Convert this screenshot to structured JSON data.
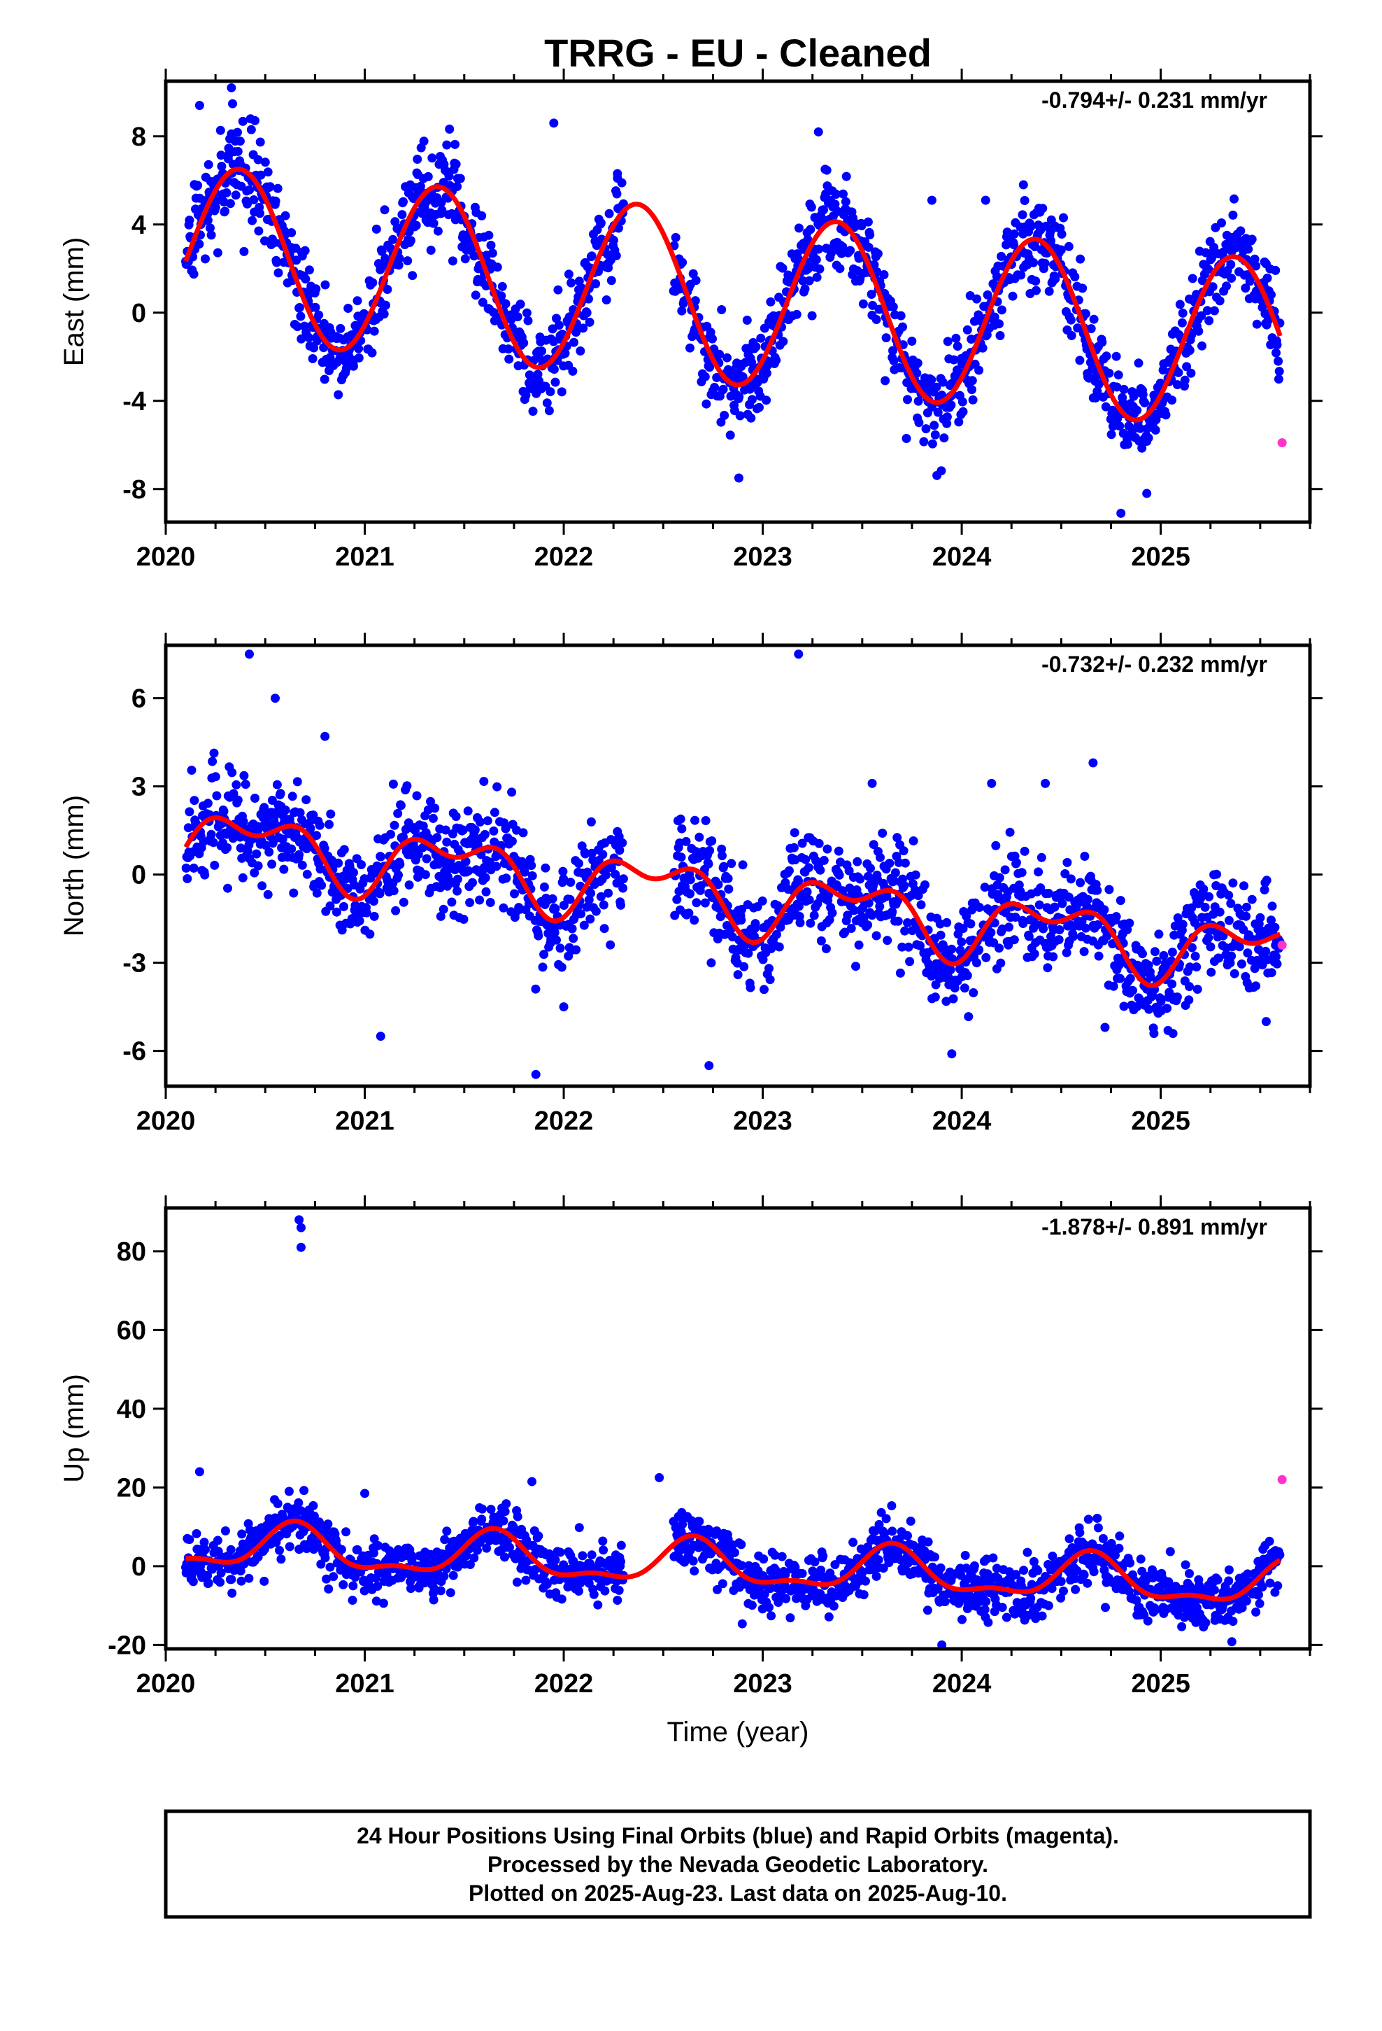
{
  "title": "TRRG  - EU - Cleaned",
  "xlabel": "Time (year)",
  "footer": {
    "line1": "24 Hour Positions Using Final Orbits (blue) and Rapid Orbits (magenta).",
    "line2": "Processed by the Nevada Geodetic Laboratory.",
    "line3": "Plotted on 2025-Aug-23. Last data on 2025-Aug-10."
  },
  "colors": {
    "final": "#0000ff",
    "rapid": "#ff33cc",
    "model": "#ff0000",
    "axis": "#000000"
  },
  "chart_data": [
    {
      "type": "scatter",
      "ylabel": "East (mm)",
      "rate_label": "-0.794+/- 0.231 mm/yr",
      "xlim": [
        2020.0,
        2025.75
      ],
      "ylim": [
        -9.5,
        10.5
      ],
      "x_ticks": [
        2020,
        2021,
        2022,
        2023,
        2024,
        2025
      ],
      "y_ticks": [
        -8,
        -4,
        0,
        4,
        8
      ],
      "model": {
        "offset": 2.9,
        "rate": -0.794,
        "annual_amp": 3.9,
        "annual_peak": 0.37,
        "semi_amp": 0,
        "semi_peak": 0,
        "noise": 1.05
      },
      "gaps": [
        [
          2022.3,
          2022.55
        ]
      ],
      "outliers": [
        [
          2020.17,
          9.4
        ],
        [
          2020.33,
          10.2
        ],
        [
          2020.43,
          8.3
        ],
        [
          2021.95,
          8.6
        ],
        [
          2022.27,
          6.1
        ],
        [
          2022.88,
          -7.5
        ],
        [
          2023.28,
          8.2
        ],
        [
          2023.85,
          5.1
        ],
        [
          2024.12,
          5.1
        ],
        [
          2024.31,
          5.8
        ],
        [
          2024.8,
          -9.1
        ],
        [
          2024.93,
          -8.2
        ]
      ],
      "rapid": [
        [
          2025.61,
          -5.9
        ]
      ]
    },
    {
      "type": "scatter",
      "ylabel": "North (mm)",
      "rate_label": "-0.732+/- 0.232 mm/yr",
      "xlim": [
        2020.0,
        2025.75
      ],
      "ylim": [
        -7.2,
        7.8
      ],
      "x_ticks": [
        2020,
        2021,
        2022,
        2023,
        2024,
        2025
      ],
      "y_ticks": [
        -6,
        -3,
        0,
        3,
        6
      ],
      "model": {
        "offset": 1.35,
        "rate": -0.732,
        "annual_amp": 0.9,
        "annual_peak": 0.45,
        "semi_amp": 0.6,
        "semi_peak": 0.2,
        "noise": 0.9
      },
      "gaps": [
        [
          2022.3,
          2022.55
        ]
      ],
      "outliers": [
        [
          2020.42,
          7.5
        ],
        [
          2020.55,
          6.0
        ],
        [
          2020.8,
          4.7
        ],
        [
          2021.08,
          -5.5
        ],
        [
          2021.86,
          -6.8
        ],
        [
          2022.0,
          -4.5
        ],
        [
          2022.73,
          -6.5
        ],
        [
          2023.18,
          7.5
        ],
        [
          2023.55,
          3.1
        ],
        [
          2023.95,
          -6.1
        ],
        [
          2024.15,
          3.1
        ],
        [
          2024.42,
          3.1
        ],
        [
          2024.66,
          3.8
        ],
        [
          2024.72,
          -5.2
        ],
        [
          2025.53,
          -5.0
        ]
      ],
      "rapid": [
        [
          2025.61,
          -2.4
        ]
      ]
    },
    {
      "type": "scatter",
      "ylabel": "Up (mm)",
      "rate_label": "-1.878+/- 0.891 mm/yr",
      "xlim": [
        2020.0,
        2025.75
      ],
      "ylim": [
        -21,
        91
      ],
      "x_ticks": [
        2020,
        2021,
        2022,
        2023,
        2024,
        2025
      ],
      "y_ticks": [
        -20,
        0,
        20,
        40,
        60,
        80
      ],
      "model": {
        "offset": 5.3,
        "rate": -1.878,
        "annual_amp": 5.2,
        "annual_peak": 0.65,
        "semi_amp": 2.2,
        "semi_peak": 0.15,
        "noise": 3.6
      },
      "gaps": [
        [
          2022.3,
          2022.55
        ]
      ],
      "outliers": [
        [
          2020.17,
          24
        ],
        [
          2020.67,
          88
        ],
        [
          2020.68,
          86
        ],
        [
          2020.68,
          81
        ],
        [
          2020.62,
          19
        ],
        [
          2021.0,
          18.5
        ],
        [
          2021.84,
          21.5
        ],
        [
          2022.48,
          22.5
        ],
        [
          2023.9,
          -20
        ]
      ],
      "rapid": [
        [
          2025.61,
          22
        ]
      ]
    }
  ]
}
